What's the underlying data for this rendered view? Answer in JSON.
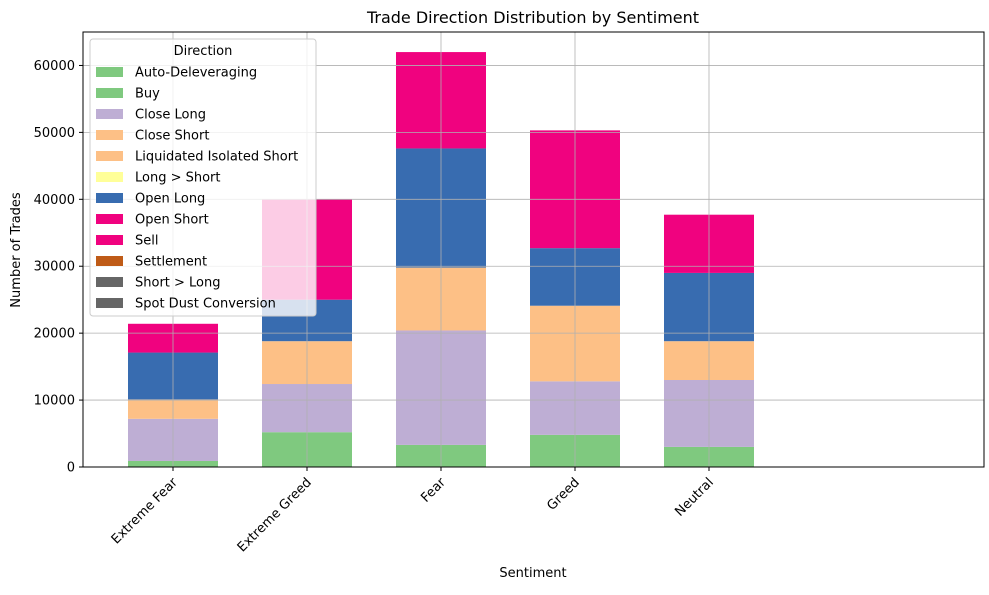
{
  "chart_data": {
    "type": "bar",
    "stacked": true,
    "title": "Trade Direction Distribution by Sentiment",
    "xlabel": "Sentiment",
    "ylabel": "Number of Trades",
    "ylim": [
      0,
      65000
    ],
    "yticks": [
      0,
      10000,
      20000,
      30000,
      40000,
      50000,
      60000
    ],
    "grid": true,
    "legend": {
      "title": "Direction",
      "placement": "top-left"
    },
    "categories": [
      "Extreme Fear",
      "Extreme Greed",
      "Fear",
      "Greed",
      "Neutral"
    ],
    "series": [
      {
        "name": "Auto-Deleveraging",
        "color": "#7fc97f",
        "values": [
          0,
          0,
          0,
          0,
          0
        ]
      },
      {
        "name": "Buy",
        "color": "#7fc97f",
        "values": [
          900,
          5200,
          3300,
          4800,
          3000
        ]
      },
      {
        "name": "Close Long",
        "color": "#beaed4",
        "values": [
          6300,
          7200,
          17100,
          8000,
          10000
        ]
      },
      {
        "name": "Close Short",
        "color": "#fdc086",
        "values": [
          2900,
          6400,
          9400,
          11300,
          5800
        ]
      },
      {
        "name": "Liquidated Isolated Short",
        "color": "#fdc086",
        "values": [
          0,
          0,
          0,
          0,
          0
        ]
      },
      {
        "name": "Long > Short",
        "color": "#ffff99",
        "values": [
          0,
          0,
          0,
          0,
          0
        ]
      },
      {
        "name": "Open Long",
        "color": "#386cb0",
        "values": [
          7000,
          6200,
          17800,
          8600,
          10200
        ]
      },
      {
        "name": "Open Short",
        "color": "#f0027f",
        "values": [
          4300,
          15000,
          14400,
          17600,
          8700
        ]
      },
      {
        "name": "Sell",
        "color": "#f0027f",
        "values": [
          0,
          0,
          0,
          0,
          0
        ]
      },
      {
        "name": "Settlement",
        "color": "#bf5b17",
        "values": [
          0,
          0,
          0,
          0,
          0
        ]
      },
      {
        "name": "Short > Long",
        "color": "#666666",
        "values": [
          0,
          0,
          0,
          0,
          0
        ]
      },
      {
        "name": "Spot Dust Conversion",
        "color": "#666666",
        "values": [
          0,
          0,
          0,
          0,
          0
        ]
      }
    ]
  }
}
